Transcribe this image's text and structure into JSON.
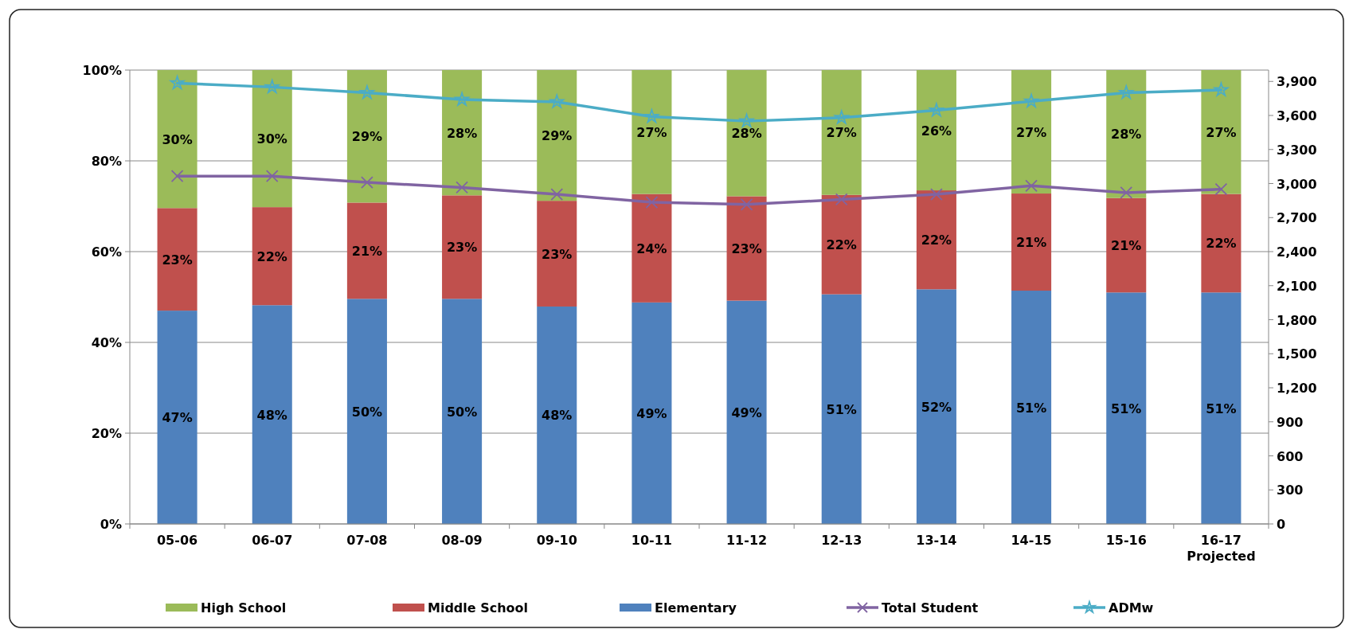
{
  "chart_data": {
    "type": "bar",
    "stacked": true,
    "categories": [
      "05-06",
      "06-07",
      "07-08",
      "08-09",
      "09-10",
      "10-11",
      "11-12",
      "12-13",
      "13-14",
      "14-15",
      "15-16",
      "16-17\nProjected"
    ],
    "series": [
      {
        "name": "Elementary",
        "color": "#4f81bd",
        "values": [
          47,
          48.2,
          49.6,
          49.6,
          47.9,
          48.8,
          49.2,
          50.6,
          51.7,
          51.4,
          51,
          51
        ],
        "value_labels": [
          "47%",
          "48%",
          "50%",
          "50%",
          "48%",
          "49%",
          "49%",
          "51%",
          "52%",
          "51%",
          "51%",
          "51%"
        ]
      },
      {
        "name": "Middle School",
        "color": "#c0504d",
        "values": [
          22.6,
          21.6,
          21.2,
          22.8,
          23.3,
          23.9,
          23,
          21.9,
          21.8,
          21.4,
          20.8,
          21.7
        ],
        "value_labels": [
          "23%",
          "22%",
          "21%",
          "23%",
          "23%",
          "24%",
          "23%",
          "22%",
          "22%",
          "21%",
          "21%",
          "22%"
        ]
      },
      {
        "name": "High School",
        "color": "#9bbb59",
        "values": [
          30.4,
          30.2,
          29.2,
          27.6,
          28.8,
          27.3,
          27.8,
          27.5,
          26.5,
          27.2,
          28.2,
          27.3
        ],
        "value_labels": [
          "30%",
          "30%",
          "29%",
          "28%",
          "29%",
          "27%",
          "28%",
          "27%",
          "26%",
          "27%",
          "28%",
          "27%"
        ]
      },
      {
        "name": "Total Student",
        "type": "line",
        "axis": "y2",
        "color": "#8064a2",
        "marker": "cross",
        "values": [
          3065,
          3065,
          3010,
          2965,
          2905,
          2835,
          2815,
          2860,
          2905,
          2980,
          2920,
          2950
        ]
      },
      {
        "name": "ADMw",
        "type": "line",
        "axis": "y2",
        "color": "#4bacc6",
        "marker": "star",
        "values": [
          3885,
          3850,
          3800,
          3740,
          3720,
          3590,
          3550,
          3580,
          3645,
          3725,
          3800,
          3825
        ]
      }
    ],
    "ylim": [
      0,
      100
    ],
    "yticks": [
      {
        "value": 0,
        "label": "0%"
      },
      {
        "value": 20,
        "label": "20%"
      },
      {
        "value": 40,
        "label": "40%"
      },
      {
        "value": 60,
        "label": "60%"
      },
      {
        "value": 80,
        "label": "80%"
      },
      {
        "value": 100,
        "label": "100%"
      }
    ],
    "y2lim": [
      0,
      4000
    ],
    "y2ticks": [
      {
        "value": 0,
        "label": "0"
      },
      {
        "value": 300,
        "label": "300"
      },
      {
        "value": 600,
        "label": "600"
      },
      {
        "value": 900,
        "label": "900"
      },
      {
        "value": 1200,
        "label": "1,200"
      },
      {
        "value": 1500,
        "label": "1,500"
      },
      {
        "value": 1800,
        "label": "1,800"
      },
      {
        "value": 2100,
        "label": "2,100"
      },
      {
        "value": 2400,
        "label": "2,400"
      },
      {
        "value": 2700,
        "label": "2,700"
      },
      {
        "value": 3000,
        "label": "3,000"
      },
      {
        "value": 3300,
        "label": "3,300"
      },
      {
        "value": 3600,
        "label": "3,600"
      },
      {
        "value": 3900,
        "label": "3,900"
      }
    ],
    "grid": "y",
    "legend": "bottom",
    "line_style": "solid"
  }
}
